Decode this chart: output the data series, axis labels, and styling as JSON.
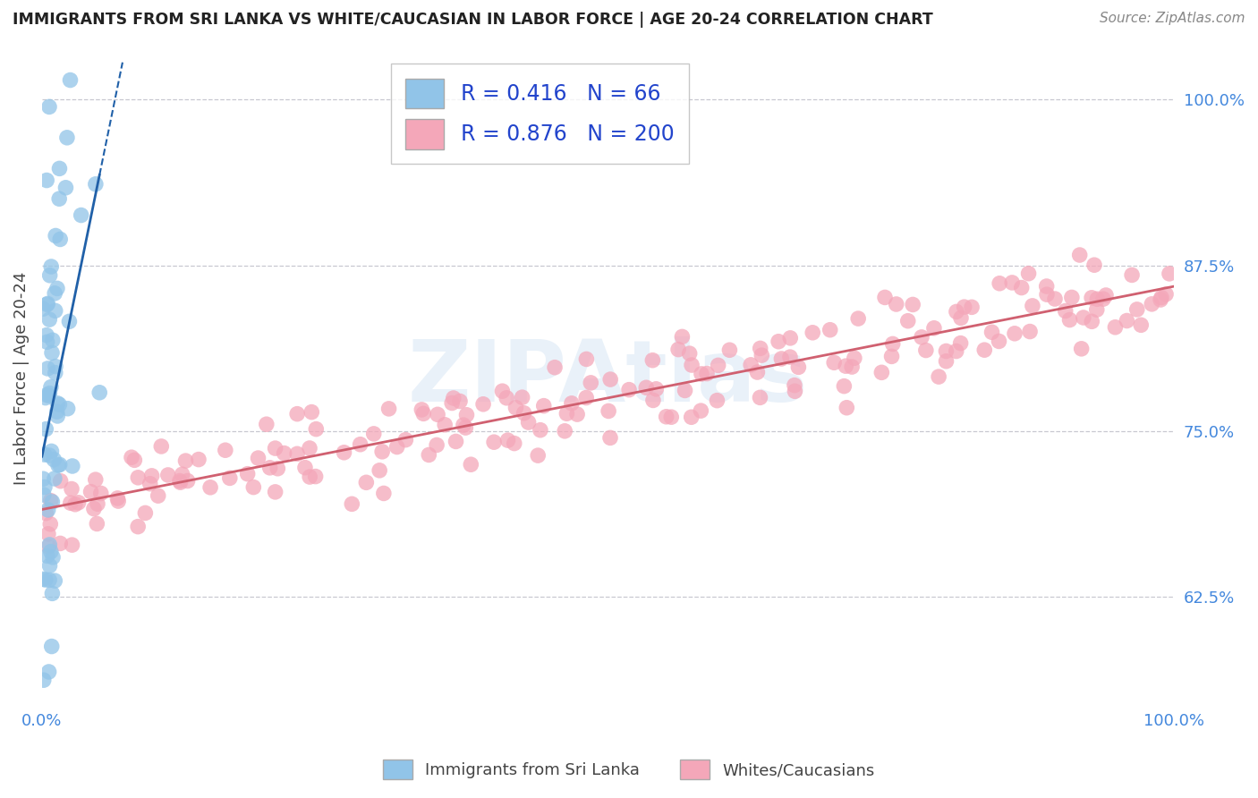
{
  "title": "IMMIGRANTS FROM SRI LANKA VS WHITE/CAUCASIAN IN LABOR FORCE | AGE 20-24 CORRELATION CHART",
  "source": "Source: ZipAtlas.com",
  "ylabel": "In Labor Force | Age 20-24",
  "xlim": [
    0.0,
    1.0
  ],
  "ylim": [
    0.545,
    1.035
  ],
  "yticks": [
    0.625,
    0.75,
    0.875,
    1.0
  ],
  "ytick_labels": [
    "62.5%",
    "75.0%",
    "87.5%",
    "100.0%"
  ],
  "blue_color": "#91c4e8",
  "pink_color": "#f4a7b9",
  "blue_line_color": "#2060a8",
  "pink_line_color": "#d06070",
  "legend_R1": "0.416",
  "legend_N1": "66",
  "legend_R2": "0.876",
  "legend_N2": "200",
  "watermark": "ZIPAtlas",
  "background_color": "#ffffff",
  "grid_color": "#c8c8d0"
}
